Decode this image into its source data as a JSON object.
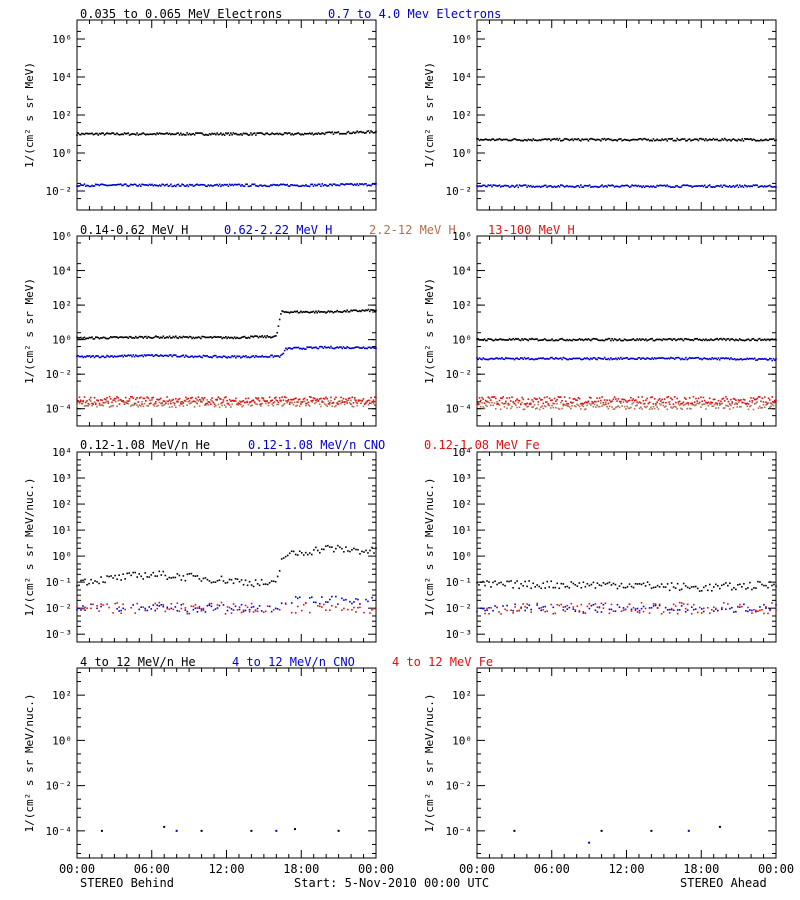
{
  "colors": {
    "black": "#000000",
    "blue": "#0000cc",
    "salmon": "#b36e50",
    "red": "#dd1111"
  },
  "rows": [
    {
      "titles": [
        {
          "text": "0.035 to 0.065 MeV Electrons",
          "color": "black"
        },
        {
          "text": "0.7 to 4.0 Mev Electrons",
          "color": "blue"
        }
      ],
      "ylabel": "1/(cm² s sr MeV)",
      "ticks": [
        {
          "v": -2,
          "label": "10⁻²"
        },
        {
          "v": 0,
          "label": "10⁰"
        },
        {
          "v": 2,
          "label": "10²"
        },
        {
          "v": 4,
          "label": "10⁴"
        },
        {
          "v": 6,
          "label": "10⁶"
        }
      ],
      "ylim": [
        -3,
        7
      ]
    },
    {
      "titles": [
        {
          "text": "0.14-0.62 MeV H",
          "color": "black"
        },
        {
          "text": "0.62-2.22 MeV H",
          "color": "blue"
        },
        {
          "text": "2.2-12 MeV H",
          "color": "salmon"
        },
        {
          "text": "13-100 MeV H",
          "color": "red"
        }
      ],
      "ylabel": "1/(cm² s sr MeV)",
      "ticks": [
        {
          "v": -4,
          "label": "10⁻⁴"
        },
        {
          "v": -2,
          "label": "10⁻²"
        },
        {
          "v": 0,
          "label": "10⁰"
        },
        {
          "v": 2,
          "label": "10²"
        },
        {
          "v": 4,
          "label": "10⁴"
        },
        {
          "v": 6,
          "label": "10⁶"
        }
      ],
      "ylim": [
        -5,
        6
      ]
    },
    {
      "titles": [
        {
          "text": "0.12-1.08 MeV/n He",
          "color": "black"
        },
        {
          "text": "0.12-1.08 MeV/n CNO",
          "color": "blue"
        },
        {
          "text": "0.12-1.08 MeV Fe",
          "color": "red"
        }
      ],
      "ylabel": "1/(cm² s sr MeV/nuc.)",
      "ticks": [
        {
          "v": -3,
          "label": "10⁻³"
        },
        {
          "v": -2,
          "label": "10⁻²"
        },
        {
          "v": -1,
          "label": "10⁻¹"
        },
        {
          "v": 0,
          "label": "10⁰"
        },
        {
          "v": 1,
          "label": "10¹"
        },
        {
          "v": 2,
          "label": "10²"
        },
        {
          "v": 3,
          "label": "10³"
        },
        {
          "v": 4,
          "label": "10⁴"
        }
      ],
      "ylim": [
        -3.3,
        4
      ]
    },
    {
      "titles": [
        {
          "text": "4 to 12 MeV/n He",
          "color": "black"
        },
        {
          "text": "4 to 12 MeV/n CNO",
          "color": "blue"
        },
        {
          "text": "4 to 12 MeV Fe",
          "color": "red"
        }
      ],
      "ylabel": "1/(cm² s sr MeV/nuc.)",
      "ticks": [
        {
          "v": -4,
          "label": "10⁻⁴"
        },
        {
          "v": -2,
          "label": "10⁻²"
        },
        {
          "v": 0,
          "label": "10⁰"
        },
        {
          "v": 2,
          "label": "10²"
        }
      ],
      "ylim": [
        -5.2,
        3.2
      ]
    }
  ],
  "xticks": [
    "00:00",
    "06:00",
    "12:00",
    "18:00",
    "00:00"
  ],
  "footer": {
    "left": "STEREO Behind",
    "center": "Start:  5-Nov-2010 00:00 UTC",
    "right": "STEREO Ahead"
  },
  "chart_data": [
    {
      "panel": "electrons",
      "spacecraft": "STEREO Behind",
      "type": "scatter",
      "y_scale": "log",
      "x_range_hours": [
        0,
        24
      ],
      "series": [
        {
          "name": "0.035 to 0.065 MeV Electrons",
          "color": "black",
          "points": [
            [
              0,
              10
            ],
            [
              6,
              10
            ],
            [
              12,
              10
            ],
            [
              18,
              10
            ],
            [
              24,
              13
            ]
          ]
        },
        {
          "name": "0.7 to 4.0 Mev Electrons",
          "color": "blue",
          "points": [
            [
              0,
              0.02
            ],
            [
              6,
              0.02
            ],
            [
              12,
              0.02
            ],
            [
              18,
              0.02
            ],
            [
              24,
              0.022
            ]
          ]
        }
      ]
    },
    {
      "panel": "electrons",
      "spacecraft": "STEREO Ahead",
      "type": "scatter",
      "y_scale": "log",
      "x_range_hours": [
        0,
        24
      ],
      "series": [
        {
          "name": "0.035 to 0.065 MeV Electrons",
          "color": "black",
          "points": [
            [
              0,
              5
            ],
            [
              6,
              5
            ],
            [
              12,
              5
            ],
            [
              18,
              5
            ],
            [
              24,
              5
            ]
          ]
        },
        {
          "name": "0.7 to 4.0 Mev Electrons",
          "color": "blue",
          "points": [
            [
              0,
              0.018
            ],
            [
              6,
              0.018
            ],
            [
              12,
              0.018
            ],
            [
              18,
              0.018
            ],
            [
              24,
              0.018
            ]
          ]
        }
      ]
    },
    {
      "panel": "protons",
      "spacecraft": "STEREO Behind",
      "type": "scatter",
      "y_scale": "log",
      "x_range_hours": [
        0,
        24
      ],
      "series": [
        {
          "name": "0.14-0.62 MeV H",
          "color": "black",
          "points": [
            [
              0,
              1.2
            ],
            [
              6,
              1.4
            ],
            [
              12,
              1.3
            ],
            [
              16,
              1.5
            ],
            [
              16.4,
              40
            ],
            [
              20,
              40
            ],
            [
              24,
              50
            ]
          ]
        },
        {
          "name": "0.62-2.22 MeV H",
          "color": "blue",
          "points": [
            [
              0,
              0.1
            ],
            [
              6,
              0.12
            ],
            [
              12,
              0.1
            ],
            [
              16.4,
              0.11
            ],
            [
              16.8,
              0.3
            ],
            [
              20,
              0.35
            ],
            [
              24,
              0.35
            ]
          ]
        },
        {
          "name": "2.2-12 MeV H",
          "color": "salmon",
          "points": [
            [
              0,
              0.0002
            ],
            [
              12,
              0.0002
            ],
            [
              24,
              0.0002
            ]
          ]
        },
        {
          "name": "13-100 MeV H",
          "color": "red",
          "points": [
            [
              0,
              0.0003
            ],
            [
              12,
              0.0003
            ],
            [
              24,
              0.0003
            ]
          ]
        }
      ]
    },
    {
      "panel": "protons",
      "spacecraft": "STEREO Ahead",
      "type": "scatter",
      "y_scale": "log",
      "x_range_hours": [
        0,
        24
      ],
      "series": [
        {
          "name": "0.14-0.62 MeV H",
          "color": "black",
          "points": [
            [
              0,
              1
            ],
            [
              6,
              1
            ],
            [
              12,
              1
            ],
            [
              18,
              1
            ],
            [
              24,
              1
            ]
          ]
        },
        {
          "name": "0.62-2.22 MeV H",
          "color": "blue",
          "points": [
            [
              0,
              0.08
            ],
            [
              6,
              0.08
            ],
            [
              12,
              0.08
            ],
            [
              18,
              0.08
            ],
            [
              24,
              0.07
            ]
          ]
        },
        {
          "name": "2.2-12 MeV H",
          "color": "salmon",
          "points": [
            [
              0,
              0.00015
            ],
            [
              12,
              0.00015
            ],
            [
              24,
              0.00015
            ]
          ]
        },
        {
          "name": "13-100 MeV H",
          "color": "red",
          "points": [
            [
              0,
              0.0003
            ],
            [
              12,
              0.0003
            ],
            [
              24,
              0.0003
            ]
          ]
        }
      ]
    },
    {
      "panel": "low-energy heavy ions",
      "spacecraft": "STEREO Behind",
      "type": "scatter",
      "y_scale": "log",
      "x_range_hours": [
        0,
        24
      ],
      "series": [
        {
          "name": "0.12-1.08 MeV/n He",
          "color": "black",
          "points": [
            [
              0,
              0.1
            ],
            [
              6,
              0.2
            ],
            [
              12,
              0.12
            ],
            [
              16,
              0.08
            ],
            [
              16.5,
              1
            ],
            [
              20,
              2
            ],
            [
              24,
              1.5
            ]
          ]
        },
        {
          "name": "0.12-1.08 MeV/n CNO",
          "color": "blue",
          "points": [
            [
              0,
              0.01
            ],
            [
              8,
              0.01
            ],
            [
              16,
              0.01
            ],
            [
              16.5,
              0.02
            ],
            [
              24,
              0.02
            ]
          ]
        },
        {
          "name": "0.12-1.08 MeV Fe",
          "color": "red",
          "points": [
            [
              0,
              0.01
            ],
            [
              12,
              0.01
            ],
            [
              24,
              0.01
            ]
          ]
        }
      ]
    },
    {
      "panel": "low-energy heavy ions",
      "spacecraft": "STEREO Ahead",
      "type": "scatter",
      "y_scale": "log",
      "x_range_hours": [
        0,
        24
      ],
      "series": [
        {
          "name": "0.12-1.08 MeV/n He",
          "color": "black",
          "points": [
            [
              0,
              0.08
            ],
            [
              6,
              0.08
            ],
            [
              12,
              0.08
            ],
            [
              18,
              0.06
            ],
            [
              24,
              0.08
            ]
          ]
        },
        {
          "name": "0.12-1.08 MeV/n CNO",
          "color": "blue",
          "points": [
            [
              0,
              0.01
            ],
            [
              12,
              0.01
            ],
            [
              24,
              0.01
            ]
          ]
        },
        {
          "name": "0.12-1.08 MeV Fe",
          "color": "red",
          "points": [
            [
              0,
              0.01
            ],
            [
              12,
              0.01
            ],
            [
              24,
              0.01
            ]
          ]
        }
      ]
    },
    {
      "panel": "high-energy heavy ions",
      "spacecraft": "STEREO Behind",
      "type": "scatter",
      "y_scale": "log",
      "x_range_hours": [
        0,
        24
      ],
      "series": [
        {
          "name": "4 to 12 MeV/n He",
          "color": "black",
          "points": [
            [
              2,
              0.0001
            ],
            [
              7,
              0.00015
            ],
            [
              10,
              0.0001
            ],
            [
              14,
              0.0001
            ],
            [
              17.5,
              0.00012
            ],
            [
              21,
              0.0001
            ]
          ]
        },
        {
          "name": "4 to 12 MeV/n CNO",
          "color": "blue",
          "points": [
            [
              8,
              0.0001
            ],
            [
              16,
              0.0001
            ]
          ]
        }
      ]
    },
    {
      "panel": "high-energy heavy ions",
      "spacecraft": "STEREO Ahead",
      "type": "scatter",
      "y_scale": "log",
      "x_range_hours": [
        0,
        24
      ],
      "series": [
        {
          "name": "4 to 12 MeV/n He",
          "color": "black",
          "points": [
            [
              3,
              0.0001
            ],
            [
              10,
              0.0001
            ],
            [
              14,
              0.0001
            ],
            [
              19.5,
              0.00015
            ]
          ]
        },
        {
          "name": "4 to 12 MeV/n CNO",
          "color": "blue",
          "points": [
            [
              9,
              3e-05
            ],
            [
              17,
              0.0001
            ]
          ]
        }
      ]
    }
  ]
}
